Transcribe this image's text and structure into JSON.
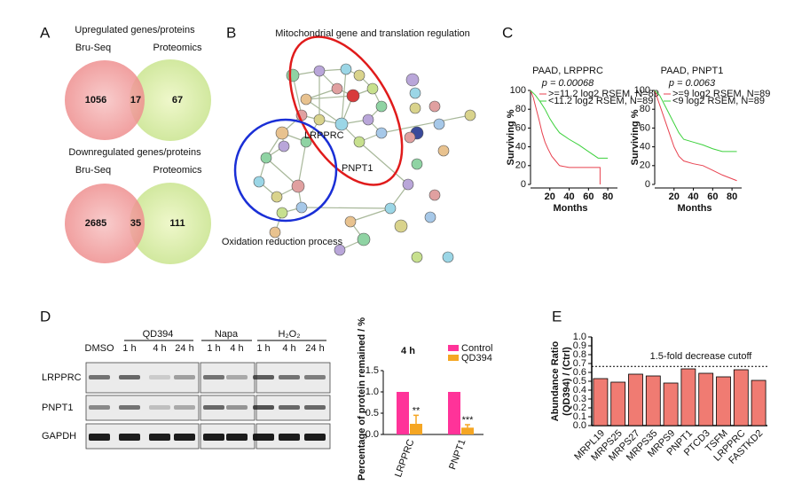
{
  "panel_labels": [
    "A",
    "B",
    "C",
    "D",
    "E"
  ],
  "venn": [
    {
      "title": "Upregulated genes/proteins",
      "left_label": "Bru-Seq",
      "right_label": "Proteomics",
      "left_only": 1056,
      "overlap": 17,
      "right_only": 67
    },
    {
      "title": "Downregulated genes/proteins",
      "left_label": "Bru-Seq",
      "right_label": "Proteomics",
      "left_only": 2685,
      "overlap": 35,
      "right_only": 111
    }
  ],
  "network": {
    "mito_annotation": "Mitochondrial gene and translation regulation",
    "oxidation_annotation": "Oxidation reduction process",
    "highlighted": [
      "LRPPRC",
      "PNPT1"
    ]
  },
  "survival": [
    {
      "type": "line",
      "title": "PAAD, LRPPRC",
      "subtitle": "p = 0.00068",
      "y_label": "Surviving %",
      "x_label": "Months",
      "xlim": [
        0,
        90
      ],
      "ylim": [
        0,
        100
      ],
      "xticks": [
        20,
        40,
        60,
        80
      ],
      "yticks": [
        0,
        20,
        40,
        60,
        80,
        100
      ],
      "series": [
        {
          "name": ">=11.2 log2 RSEM, N=89",
          "color": "#e8414f",
          "x": [
            0,
            3,
            6,
            9,
            12,
            15,
            18,
            22,
            26,
            30,
            40,
            55,
            72,
            72
          ],
          "values": [
            100,
            92,
            80,
            68,
            55,
            45,
            38,
            30,
            25,
            20,
            18,
            18,
            18,
            0
          ]
        },
        {
          "name": "<11.2 log2 RSEM, N=89",
          "color": "#3dd13d",
          "x": [
            0,
            5,
            10,
            15,
            20,
            25,
            30,
            40,
            50,
            60,
            70,
            80
          ],
          "values": [
            100,
            95,
            88,
            80,
            70,
            62,
            55,
            48,
            42,
            35,
            28,
            28
          ]
        }
      ]
    },
    {
      "type": "line",
      "title": "PAAD, PNPT1",
      "subtitle": "p = 0.0063",
      "y_label": "Surviving %",
      "x_label": "Months",
      "xlim": [
        0,
        90
      ],
      "ylim": [
        0,
        100
      ],
      "xticks": [
        20,
        40,
        60,
        80
      ],
      "yticks": [
        0,
        20,
        40,
        60,
        80,
        100
      ],
      "series": [
        {
          "name": ">=9 log2 RSEM, N=89",
          "color": "#e8414f",
          "x": [
            0,
            5,
            10,
            15,
            20,
            25,
            30,
            40,
            50,
            60,
            70,
            80,
            85
          ],
          "values": [
            100,
            85,
            70,
            55,
            40,
            30,
            25,
            22,
            20,
            15,
            10,
            6,
            4
          ]
        },
        {
          "name": "<9 log2 RSEM, N=89",
          "color": "#3dd13d",
          "x": [
            0,
            5,
            10,
            15,
            20,
            25,
            30,
            40,
            50,
            60,
            70,
            85
          ],
          "values": [
            100,
            95,
            85,
            75,
            65,
            55,
            48,
            45,
            42,
            38,
            35,
            35
          ]
        }
      ]
    }
  ],
  "blot": {
    "groups": [
      "QD394",
      "Napa",
      "H₂O₂"
    ],
    "lanes": [
      "DMSO",
      "1 h",
      "4 h",
      "24 h",
      "1 h",
      "4 h",
      "1 h",
      "4 h",
      "24 h"
    ],
    "rows": [
      "LRPPRC",
      "PNPT1",
      "GAPDH"
    ]
  },
  "bar_d": {
    "type": "bar",
    "title": "4 h",
    "y_label": "Percentage of protein remained / %",
    "categories": [
      "LRPPRC",
      "PNPT1"
    ],
    "series": [
      {
        "name": "Control",
        "color": "#ff3399",
        "values": [
          1,
          1
        ]
      },
      {
        "name": "QD394",
        "color": "#f5a623",
        "values": [
          0.25,
          0.16
        ],
        "errors": [
          0.2,
          0.07
        ]
      }
    ],
    "significance": [
      "**",
      "***"
    ],
    "ylim": [
      0,
      1.5
    ],
    "yticks": [
      {
        "value": 0,
        "label": "0.0"
      },
      0.5,
      {
        "value": 1,
        "label": "1.0"
      },
      1.5
    ]
  },
  "bar_e": {
    "type": "bar",
    "y_label": [
      "Abundance Ratio",
      "(QD394) / (Ctrl)"
    ],
    "color": "#f07b72",
    "categories": [
      "MRPL19",
      "MRPS25",
      "MRPS27",
      "MRPS35",
      "MRPS9",
      "PNPT1",
      "PTCD3",
      "TSFM",
      "LRPPRC",
      "FASTKD2"
    ],
    "values": [
      0.53,
      0.49,
      0.58,
      0.56,
      0.48,
      0.64,
      0.59,
      0.55,
      0.63,
      0.51
    ],
    "cutoff": 0.667,
    "cutoff_label": "1.5-fold decrease cutoff",
    "ylim": [
      0,
      1
    ],
    "yticks": [
      {
        "value": 0,
        "label": "0.0"
      },
      0.1,
      0.2,
      0.3,
      0.4,
      0.5,
      0.6,
      0.7,
      0.8,
      0.9,
      {
        "value": 1,
        "label": "1.0"
      }
    ]
  }
}
